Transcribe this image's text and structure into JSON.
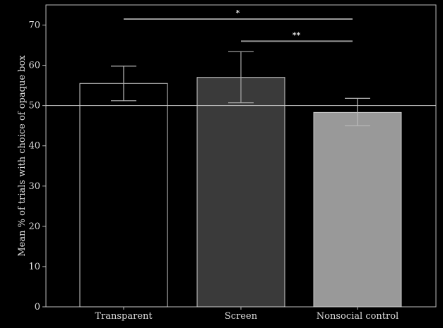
{
  "chart_data": {
    "type": "bar",
    "title": "",
    "xlabel": "",
    "ylabel": "Mean % of trials with choice of opaque box",
    "ylim": [
      0,
      75
    ],
    "yticks": [
      0,
      10,
      20,
      30,
      40,
      50,
      60,
      70
    ],
    "categories": [
      "Transparent",
      "Screen",
      "Nonsocial control"
    ],
    "values": [
      55.5,
      57,
      48.3
    ],
    "error_low": [
      51.2,
      50.7,
      45
    ],
    "error_high": [
      59.8,
      63.4,
      51.8
    ],
    "bar_colors": [
      "#000000",
      "#3a3a3a",
      "#999999"
    ],
    "reference_line": 50,
    "significance": [
      {
        "from": 0,
        "to": 2,
        "label": "*",
        "y": 71.5
      },
      {
        "from": 1,
        "to": 2,
        "label": "**",
        "y": 66
      }
    ],
    "legend": "none",
    "grid": false
  }
}
